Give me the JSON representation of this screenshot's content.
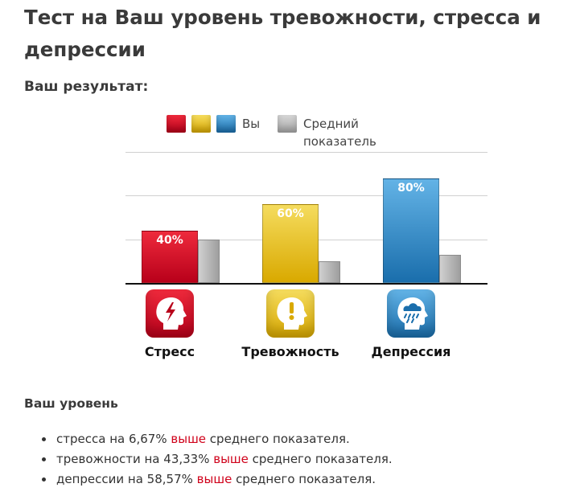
{
  "page": {
    "title": "Тест на Ваш уровень тревожности, стресса и депрессии",
    "result_heading": "Ваш результат:"
  },
  "legend": {
    "you_label": "Вы",
    "average_label": "Средний показатель",
    "you_colors": [
      "#d0021b",
      "#e8b80c",
      "#1f7fc0"
    ],
    "average_color": "#a8a8a8"
  },
  "chart_data": {
    "type": "bar",
    "categories": [
      "Стресс",
      "Тревожность",
      "Депрессия"
    ],
    "series": [
      {
        "name": "Вы",
        "values": [
          40,
          60,
          80
        ],
        "labels": [
          "40%",
          "60%",
          "80%"
        ]
      },
      {
        "name": "Средний показатель",
        "values": [
          33.33,
          16.67,
          21.43
        ]
      }
    ],
    "ylim": [
      0,
      100
    ],
    "grid": true,
    "legend_position": "top-center",
    "colors": {
      "Стресс": [
        "#ee2a3c",
        "#b8001a"
      ],
      "Тревожность": [
        "#f5dc5e",
        "#d9a900"
      ],
      "Депрессия": [
        "#63b3e6",
        "#1a6eac"
      ]
    },
    "icons": [
      "stressed-head-icon",
      "anxious-head-icon",
      "depressed-head-icon"
    ]
  },
  "summary": {
    "heading": "Ваш уровень",
    "items": [
      {
        "before": "стресса на 6,67% ",
        "highlight": "выше",
        "after": " среднего показателя."
      },
      {
        "before": "тревожности на 43,33% ",
        "highlight": "выше",
        "after": " среднего показателя."
      },
      {
        "before": "депрессии на 58,57% ",
        "highlight": "выше",
        "after": " среднего показателя."
      }
    ]
  }
}
